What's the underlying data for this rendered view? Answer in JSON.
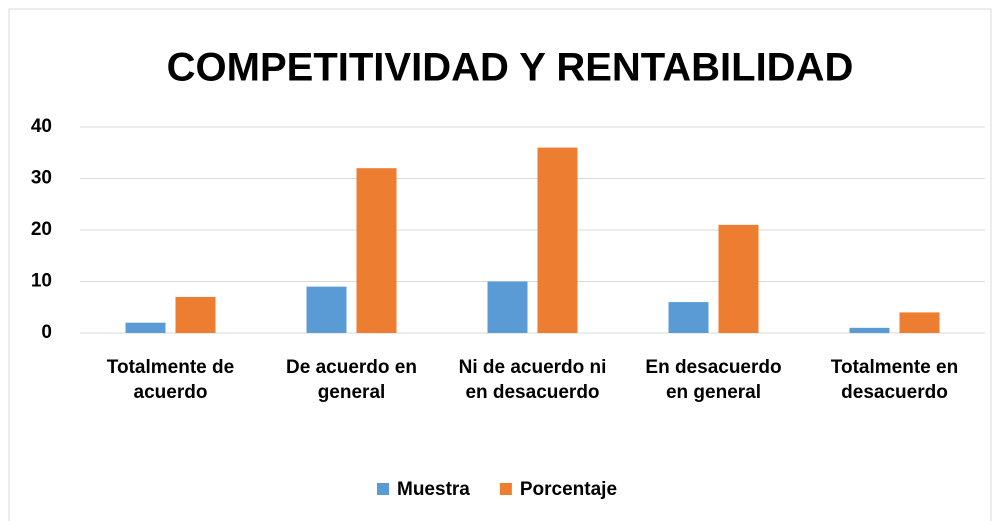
{
  "chart_data": {
    "type": "bar",
    "title": "COMPETITIVIDAD Y RENTABILIDAD",
    "categories": [
      "Totalmente de acuerdo",
      "De acuerdo en general",
      "Ni de acuerdo ni en desacuerdo",
      "En desacuerdo en general",
      "Totalmente en desacuerdo"
    ],
    "series": [
      {
        "name": "Muestra",
        "color": "#5b9bd5",
        "values": [
          2,
          9,
          10,
          6,
          1
        ]
      },
      {
        "name": "Porcentaje",
        "color": "#ed7d31",
        "values": [
          7,
          32,
          36,
          21,
          4
        ]
      }
    ],
    "ylim": [
      0,
      40
    ],
    "yticks": [
      0,
      10,
      20,
      30,
      40
    ],
    "grid": true,
    "legend": "bottom"
  }
}
